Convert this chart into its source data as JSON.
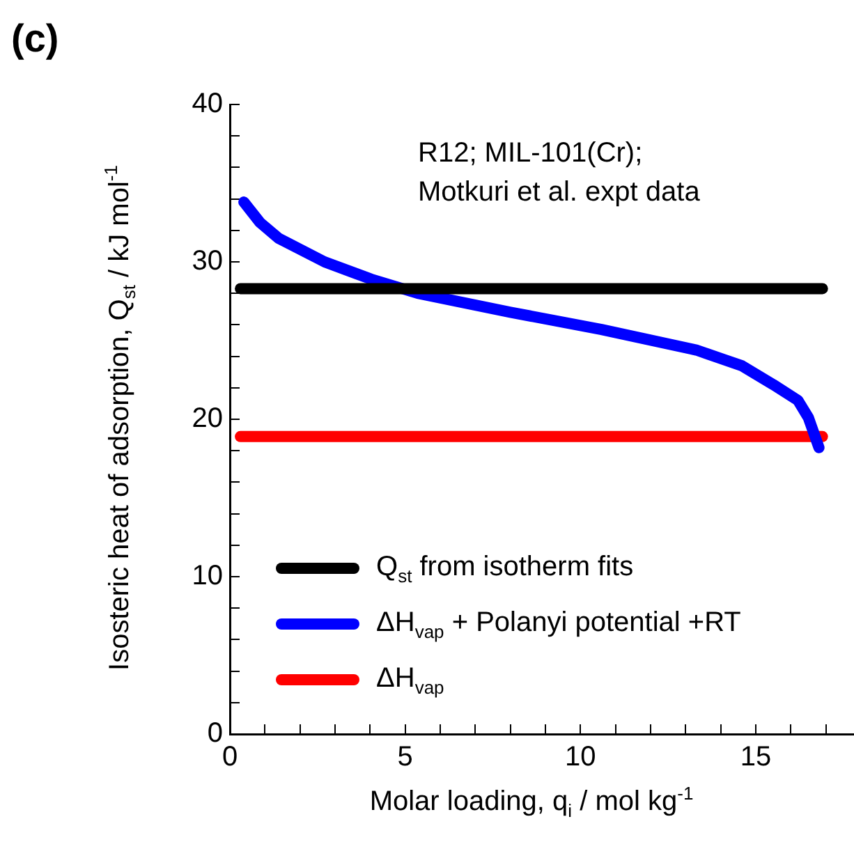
{
  "chart_data": {
    "type": "line",
    "title": "(c)",
    "xlabel": "Molar loading, q$_{i}$ / mol kg$^{-1}$",
    "ylabel": "Isosteric heat of adsorption, Q$_{st}$ / kJ mol$^{-1}$",
    "annotations": [
      "R12; MIL-101(Cr);\nMotkuri et al. expt data"
    ],
    "xlim": [
      0,
      17.8
    ],
    "ylim": [
      0,
      40
    ],
    "xticks": [
      0,
      {
        "value": 1,
        "label": null
      },
      {
        "value": 2,
        "label": null
      },
      {
        "value": 3,
        "label": null
      },
      {
        "value": 4,
        "label": null
      },
      5,
      {
        "value": 6,
        "label": null
      },
      {
        "value": 7,
        "label": null
      },
      {
        "value": 8,
        "label": null
      },
      {
        "value": 9,
        "label": null
      },
      10,
      {
        "value": 11,
        "label": null
      },
      {
        "value": 12,
        "label": null
      },
      {
        "value": 13,
        "label": null
      },
      {
        "value": 14,
        "label": null
      },
      15,
      {
        "value": 16,
        "label": null
      },
      {
        "value": 17,
        "label": null
      }
    ],
    "yticks": [
      0,
      {
        "value": 2,
        "label": null
      },
      {
        "value": 4,
        "label": null
      },
      {
        "value": 6,
        "label": null
      },
      {
        "value": 8,
        "label": null
      },
      10,
      {
        "value": 12,
        "label": null
      },
      {
        "value": 14,
        "label": null
      },
      {
        "value": 16,
        "label": null
      },
      {
        "value": 18,
        "label": null
      },
      20,
      {
        "value": 22,
        "label": null
      },
      {
        "value": 24,
        "label": null
      },
      {
        "value": 26,
        "label": null
      },
      {
        "value": 28,
        "label": null
      },
      30,
      {
        "value": 32,
        "label": null
      },
      {
        "value": 34,
        "label": null
      },
      {
        "value": 36,
        "label": null
      },
      {
        "value": 38,
        "label": null
      },
      40
    ],
    "grid": false,
    "legend": "bottom left",
    "marker": "none",
    "line_style": "solid",
    "series": [
      {
        "name": "Q$_{st}$ from isotherm fits",
        "color": "#000000",
        "x": [
          0.3,
          16.9
        ],
        "values": [
          28.3,
          28.3
        ]
      },
      {
        "name": "ΔH$_{vap}$ + Polanyi potential +RT",
        "color": "#0000ff",
        "x": [
          0.4,
          0.86,
          1.39,
          2.7,
          4.03,
          5.36,
          8.0,
          10.6,
          13.3,
          14.6,
          15.5,
          16.2,
          16.5,
          16.8
        ],
        "values": [
          33.8,
          32.5,
          31.5,
          30.0,
          28.9,
          28.0,
          26.8,
          25.7,
          24.4,
          23.4,
          22.2,
          21.2,
          20.1,
          18.2
        ]
      },
      {
        "name": "ΔH$_{vap}$",
        "color": "#ff0000",
        "x": [
          0.3,
          16.9
        ],
        "values": [
          18.9,
          18.9
        ]
      }
    ]
  }
}
